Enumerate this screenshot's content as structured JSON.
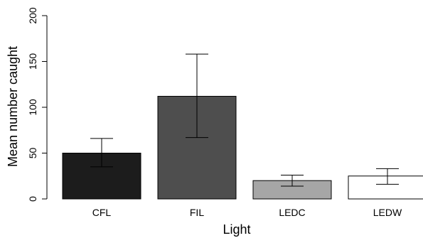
{
  "chart_data": {
    "type": "bar",
    "title": "",
    "xlabel": "Light",
    "ylabel": "Mean number caught",
    "ylim": [
      0,
      200
    ],
    "yticks": [
      0,
      50,
      100,
      150,
      200
    ],
    "grid": false,
    "categories": [
      "CFL",
      "FIL",
      "LEDC",
      "LEDW"
    ],
    "values": [
      50,
      112,
      20,
      25
    ],
    "error_low": [
      35,
      67,
      14,
      16
    ],
    "error_high": [
      66,
      158,
      26,
      33
    ],
    "colors": [
      "#1c1c1c",
      "#4e4e4e",
      "#a6a6a6",
      "#ffffff"
    ]
  }
}
